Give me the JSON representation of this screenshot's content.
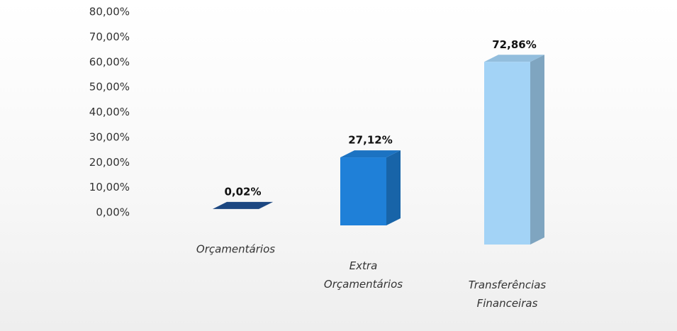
{
  "chart_data": {
    "type": "bar",
    "categories": [
      "Orçamentários",
      "Extra Orçamentários",
      "Transferências Financeiras"
    ],
    "values": [
      0.02,
      27.12,
      72.86
    ],
    "value_labels": [
      "0,02%",
      "27,12%",
      "72,86%"
    ],
    "colors": [
      "#1f4f8f",
      "#1f80d8",
      "#a3d3f6"
    ],
    "ylim": [
      0,
      80
    ],
    "yticks": [
      {
        "value": 0,
        "label": "0,00%"
      },
      {
        "value": 10,
        "label": "10,00%"
      },
      {
        "value": 20,
        "label": "20,00%"
      },
      {
        "value": 30,
        "label": "30,00%"
      },
      {
        "value": 40,
        "label": "40,00%"
      },
      {
        "value": 50,
        "label": "50,00%"
      },
      {
        "value": 60,
        "label": "60,00%"
      },
      {
        "value": 70,
        "label": "70,00%"
      },
      {
        "value": 80,
        "label": "80,00%"
      }
    ],
    "grid": false
  }
}
